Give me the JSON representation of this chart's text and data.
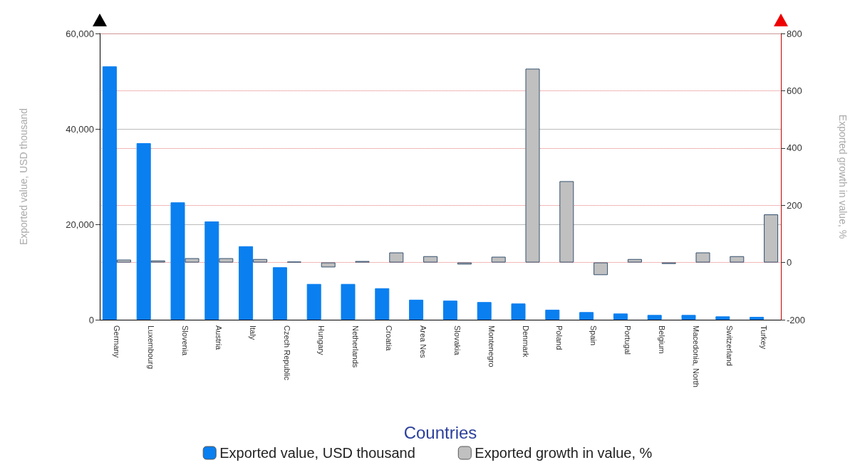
{
  "chart_data": {
    "type": "bar",
    "xlabel": "Countries",
    "ylabel": "Exported value, USD thousand",
    "y2label": "Exported growth in value, %",
    "categories": [
      "Germany",
      "Luxembourg",
      "Slovenia",
      "Austria",
      "Italy",
      "Czech Republic",
      "Hungary",
      "Netherlands",
      "Croatia",
      "Area Nes",
      "Slovakia",
      "Montenegro",
      "Denmark",
      "Poland",
      "Spain",
      "Portugal",
      "Belgium",
      "Macedonia, North",
      "Switzerland",
      "Turkey"
    ],
    "series": [
      {
        "name": "Exported value, USD thousand",
        "color": "#0a7ff0",
        "values": [
          53100,
          37000,
          24600,
          20600,
          15400,
          11000,
          7500,
          7500,
          6600,
          4200,
          4000,
          3700,
          3400,
          2100,
          1600,
          1300,
          1000,
          1000,
          700,
          600
        ]
      },
      {
        "name": "Exported growth in value, %",
        "color": "#c0c0c0",
        "axis": "y2",
        "values": [
          10,
          7,
          15,
          15,
          12,
          3,
          -17,
          5,
          35,
          22,
          -7,
          20,
          677,
          284,
          -44,
          12,
          -5,
          35,
          22,
          168
        ]
      }
    ],
    "ylim": [
      0,
      60000
    ],
    "yticks": [
      {
        "value": 0,
        "label": "0"
      },
      {
        "value": 20000,
        "label": "20,000"
      },
      {
        "value": 40000,
        "label": "40,000"
      },
      {
        "value": 60000,
        "label": "60,000"
      }
    ],
    "y2lim": [
      -200,
      800
    ],
    "y2ticks": [
      -200,
      0,
      200,
      400,
      600,
      800
    ],
    "grid": true,
    "legend": "bottom"
  }
}
